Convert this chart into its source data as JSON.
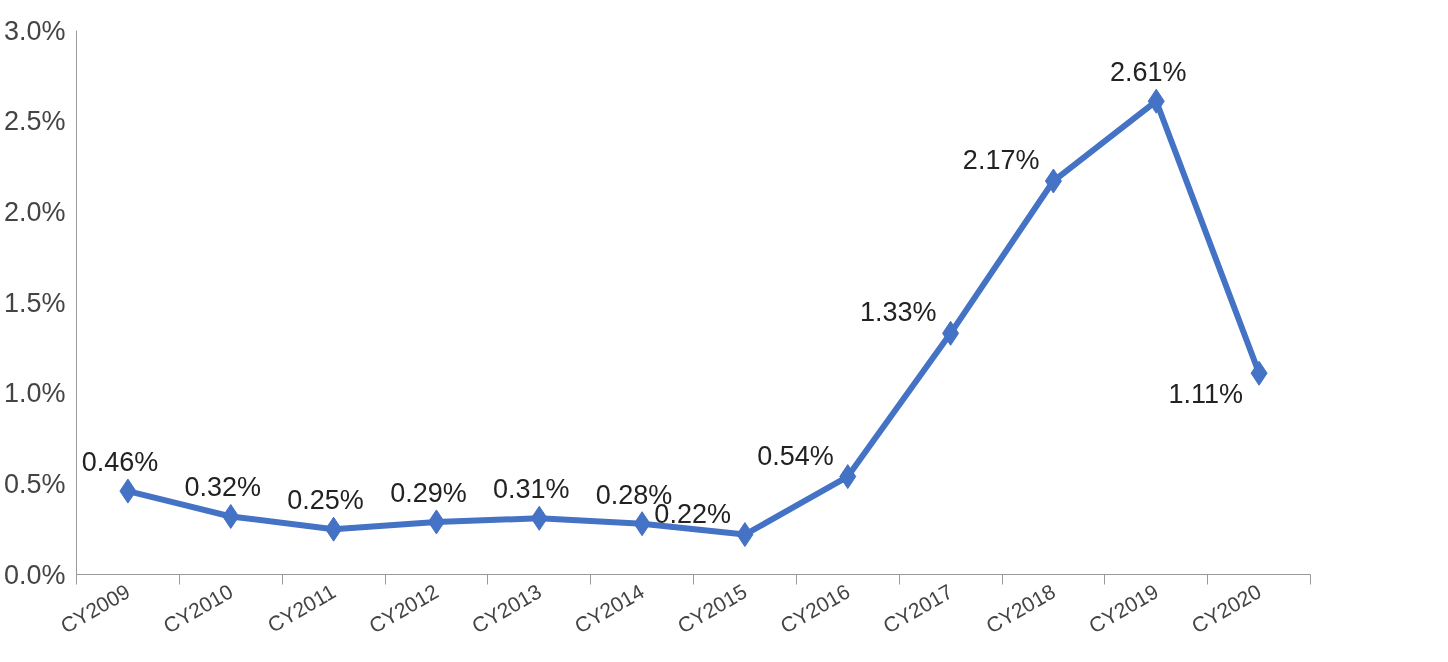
{
  "chart_data": {
    "type": "line",
    "categories": [
      "CY2009",
      "CY2010",
      "CY2011",
      "CY2012",
      "CY2013",
      "CY2014",
      "CY2015",
      "CY2016",
      "CY2017",
      "CY2018",
      "CY2019",
      "CY2020"
    ],
    "series": [
      {
        "color": "#4472c4",
        "values": [
          0.46,
          0.32,
          0.25,
          0.29,
          0.31,
          0.28,
          0.22,
          0.54,
          1.33,
          2.17,
          2.61,
          1.11
        ],
        "value_labels": [
          "0.46%",
          "0.32%",
          "0.25%",
          "0.29%",
          "0.31%",
          "0.28%",
          "0.22%",
          "0.54%",
          "1.33%",
          "2.17%",
          "2.61%",
          "1.11%"
        ]
      }
    ],
    "ylim": [
      0,
      3
    ],
    "yticks": [
      {
        "value": 0,
        "label": "0.0%"
      },
      {
        "value": 0.5,
        "label": "0.5%"
      },
      {
        "value": 1,
        "label": "1.0%"
      },
      {
        "value": 1.5,
        "label": "1.5%"
      },
      {
        "value": 2,
        "label": "2.0%"
      },
      {
        "value": 2.5,
        "label": "2.5%"
      },
      {
        "value": 3,
        "label": "3.0%"
      }
    ],
    "grid": false,
    "marker": "diamond",
    "line_style": "solid"
  }
}
